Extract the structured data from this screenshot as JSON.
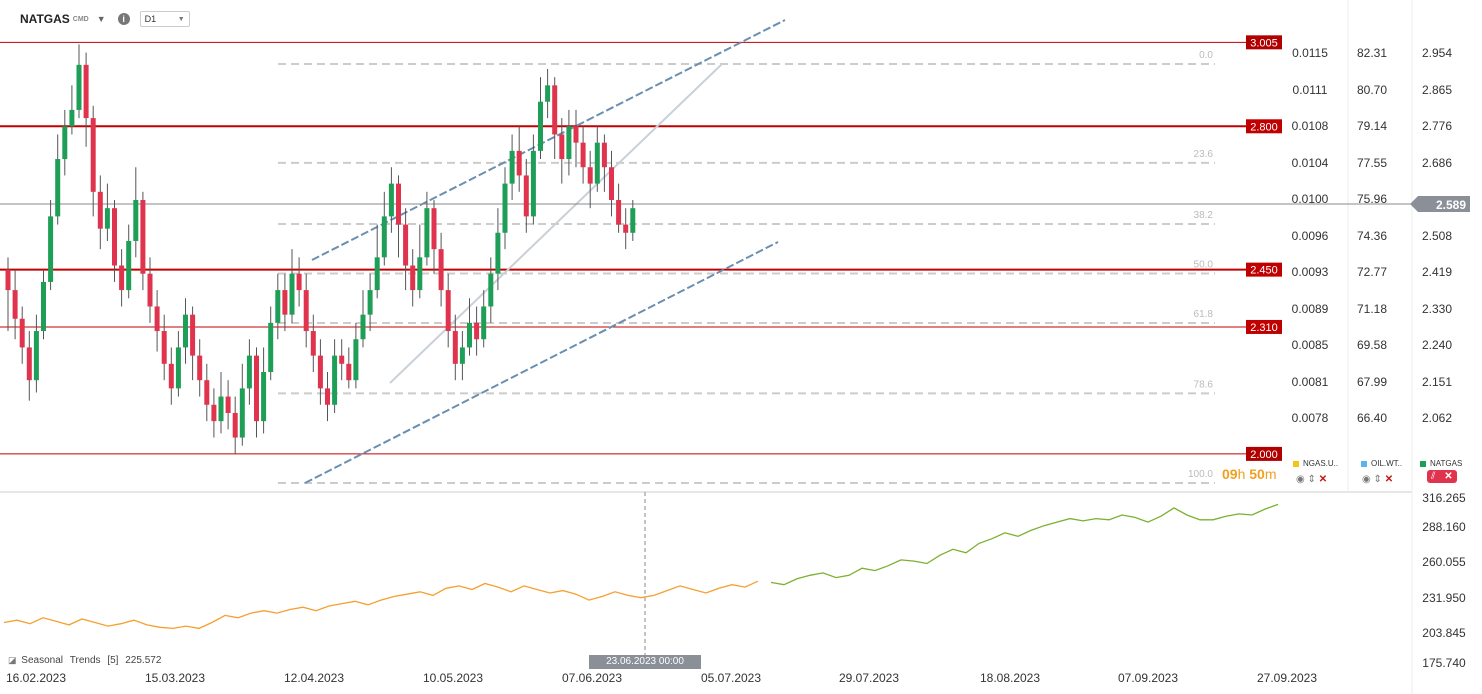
{
  "toolbar": {
    "symbol": "NATGAS",
    "symbol_suffix": "CMD",
    "timeframe": "D1",
    "info_icon": "i"
  },
  "price_levels": [
    {
      "label": "3.005",
      "color": "#b00000"
    },
    {
      "label": "2.800",
      "color": "#c00000"
    },
    {
      "label": "2.450",
      "color": "#c00000"
    },
    {
      "label": "2.310",
      "color": "#c00000"
    },
    {
      "label": "2.000",
      "color": "#b00000"
    }
  ],
  "current_price": "2.589",
  "fib_labels": [
    "0.0",
    "23.6",
    "38.2",
    "50.0",
    "61.8",
    "78.6",
    "100.0"
  ],
  "axis_ngas": [
    "0.0115",
    "0.0111",
    "0.0108",
    "0.0104",
    "0.0100",
    "0.0096",
    "0.0093",
    "0.0089",
    "0.0085",
    "0.0081",
    "0.0078"
  ],
  "axis_oil": [
    "82.31",
    "80.70",
    "79.14",
    "77.55",
    "75.96",
    "74.36",
    "72.77",
    "71.18",
    "69.58",
    "67.99",
    "66.40"
  ],
  "axis_natgas": [
    "2.954",
    "2.865",
    "2.776",
    "2.686",
    "2.597",
    "2.508",
    "2.419",
    "2.330",
    "2.240",
    "2.151",
    "2.062"
  ],
  "lower_axis": [
    "316.265",
    "288.160",
    "260.055",
    "231.950",
    "203.845",
    "175.740"
  ],
  "dates": [
    "16.02.2023",
    "15.03.2023",
    "12.04.2023",
    "10.05.2023",
    "07.06.2023",
    "05.07.2023",
    "29.07.2023",
    "18.08.2023",
    "07.09.2023",
    "27.09.2023"
  ],
  "legend": [
    {
      "name": "NGAS.U..",
      "color": "#f5c518"
    },
    {
      "name": "OIL.WT..",
      "color": "#5ab4f0"
    },
    {
      "name": "NATGAS",
      "color": "#1e9e57"
    }
  ],
  "timer": {
    "hours": "09",
    "h": "h",
    "minutes": "50",
    "m": "m"
  },
  "seasonal": {
    "label": "Seasonal",
    "name": "Trends",
    "period": "[5]",
    "value": "225.572"
  },
  "crosshair_date": "23.06.2023 00:00",
  "colors": {
    "up": "#1e9e57",
    "down": "#e0334d",
    "level": "#c00000",
    "past_line": "#f5a030",
    "future_line": "#7cb030"
  },
  "chart_data": {
    "type": "candlestick",
    "symbol": "NATGAS",
    "timeframe": "D1",
    "ylim": [
      1.99,
      3.04
    ],
    "resistance_support": [
      3.005,
      2.8,
      2.45,
      2.31,
      2.0
    ],
    "last_price": 2.589,
    "candles": [
      [
        2.45,
        2.4,
        2.48,
        2.3
      ],
      [
        2.4,
        2.33,
        2.45,
        2.28
      ],
      [
        2.33,
        2.26,
        2.36,
        2.22
      ],
      [
        2.26,
        2.18,
        2.3,
        2.13
      ],
      [
        2.18,
        2.3,
        2.34,
        2.15
      ],
      [
        2.3,
        2.42,
        2.45,
        2.28
      ],
      [
        2.42,
        2.58,
        2.62,
        2.4
      ],
      [
        2.58,
        2.72,
        2.78,
        2.56
      ],
      [
        2.72,
        2.8,
        2.84,
        2.68
      ],
      [
        2.8,
        2.84,
        2.9,
        2.78
      ],
      [
        2.84,
        2.95,
        3.0,
        2.82
      ],
      [
        2.95,
        2.82,
        2.98,
        2.75
      ],
      [
        2.82,
        2.64,
        2.85,
        2.58
      ],
      [
        2.64,
        2.55,
        2.68,
        2.5
      ],
      [
        2.55,
        2.6,
        2.66,
        2.52
      ],
      [
        2.6,
        2.46,
        2.62,
        2.42
      ],
      [
        2.46,
        2.4,
        2.5,
        2.36
      ],
      [
        2.4,
        2.52,
        2.56,
        2.38
      ],
      [
        2.52,
        2.62,
        2.7,
        2.48
      ],
      [
        2.62,
        2.44,
        2.64,
        2.4
      ],
      [
        2.44,
        2.36,
        2.48,
        2.32
      ],
      [
        2.36,
        2.3,
        2.4,
        2.25
      ],
      [
        2.3,
        2.22,
        2.34,
        2.18
      ],
      [
        2.22,
        2.16,
        2.26,
        2.12
      ],
      [
        2.16,
        2.26,
        2.3,
        2.14
      ],
      [
        2.26,
        2.34,
        2.38,
        2.22
      ],
      [
        2.34,
        2.24,
        2.36,
        2.18
      ],
      [
        2.24,
        2.18,
        2.28,
        2.14
      ],
      [
        2.18,
        2.12,
        2.22,
        2.08
      ],
      [
        2.12,
        2.08,
        2.16,
        2.04
      ],
      [
        2.08,
        2.14,
        2.2,
        2.05
      ],
      [
        2.14,
        2.1,
        2.18,
        2.06
      ],
      [
        2.1,
        2.04,
        2.14,
        2.0
      ],
      [
        2.04,
        2.16,
        2.22,
        2.02
      ],
      [
        2.16,
        2.24,
        2.28,
        2.12
      ],
      [
        2.24,
        2.08,
        2.26,
        2.04
      ],
      [
        2.08,
        2.2,
        2.26,
        2.05
      ],
      [
        2.2,
        2.32,
        2.36,
        2.18
      ],
      [
        2.32,
        2.4,
        2.44,
        2.28
      ],
      [
        2.4,
        2.34,
        2.44,
        2.3
      ],
      [
        2.34,
        2.44,
        2.5,
        2.32
      ],
      [
        2.44,
        2.4,
        2.48,
        2.36
      ],
      [
        2.4,
        2.3,
        2.44,
        2.26
      ],
      [
        2.3,
        2.24,
        2.34,
        2.2
      ],
      [
        2.24,
        2.16,
        2.28,
        2.12
      ],
      [
        2.16,
        2.12,
        2.2,
        2.08
      ],
      [
        2.12,
        2.24,
        2.28,
        2.1
      ],
      [
        2.24,
        2.22,
        2.28,
        2.18
      ],
      [
        2.22,
        2.18,
        2.26,
        2.16
      ],
      [
        2.18,
        2.28,
        2.32,
        2.16
      ],
      [
        2.28,
        2.34,
        2.4,
        2.26
      ],
      [
        2.34,
        2.4,
        2.44,
        2.3
      ],
      [
        2.4,
        2.48,
        2.56,
        2.38
      ],
      [
        2.48,
        2.58,
        2.64,
        2.46
      ],
      [
        2.58,
        2.66,
        2.7,
        2.54
      ],
      [
        2.66,
        2.56,
        2.68,
        2.48
      ],
      [
        2.56,
        2.46,
        2.6,
        2.4
      ],
      [
        2.46,
        2.4,
        2.5,
        2.36
      ],
      [
        2.4,
        2.48,
        2.56,
        2.38
      ],
      [
        2.48,
        2.6,
        2.64,
        2.46
      ],
      [
        2.6,
        2.5,
        2.62,
        2.44
      ],
      [
        2.5,
        2.4,
        2.54,
        2.36
      ],
      [
        2.4,
        2.3,
        2.44,
        2.26
      ],
      [
        2.3,
        2.22,
        2.34,
        2.18
      ],
      [
        2.22,
        2.26,
        2.3,
        2.18
      ],
      [
        2.26,
        2.32,
        2.38,
        2.24
      ],
      [
        2.32,
        2.28,
        2.36,
        2.24
      ],
      [
        2.28,
        2.36,
        2.4,
        2.26
      ],
      [
        2.36,
        2.44,
        2.48,
        2.32
      ],
      [
        2.44,
        2.54,
        2.6,
        2.4
      ],
      [
        2.54,
        2.66,
        2.7,
        2.5
      ],
      [
        2.66,
        2.74,
        2.78,
        2.62
      ],
      [
        2.74,
        2.68,
        2.8,
        2.64
      ],
      [
        2.68,
        2.58,
        2.72,
        2.54
      ],
      [
        2.58,
        2.74,
        2.78,
        2.56
      ],
      [
        2.74,
        2.86,
        2.92,
        2.72
      ],
      [
        2.86,
        2.9,
        2.94,
        2.82
      ],
      [
        2.9,
        2.78,
        2.92,
        2.72
      ],
      [
        2.78,
        2.72,
        2.82,
        2.66
      ],
      [
        2.72,
        2.8,
        2.84,
        2.68
      ],
      [
        2.8,
        2.76,
        2.84,
        2.7
      ],
      [
        2.76,
        2.7,
        2.8,
        2.66
      ],
      [
        2.7,
        2.66,
        2.74,
        2.6
      ],
      [
        2.66,
        2.76,
        2.8,
        2.64
      ],
      [
        2.76,
        2.7,
        2.78,
        2.64
      ],
      [
        2.7,
        2.62,
        2.74,
        2.58
      ],
      [
        2.62,
        2.56,
        2.66,
        2.54
      ],
      [
        2.56,
        2.54,
        2.6,
        2.5
      ],
      [
        2.54,
        2.6,
        2.62,
        2.52
      ]
    ],
    "seasonal_series": [
      210,
      212,
      209,
      214,
      211,
      208,
      213,
      210,
      207,
      209,
      212,
      208,
      206,
      205,
      207,
      205,
      210,
      216,
      214,
      218,
      220,
      218,
      221,
      223,
      220,
      224,
      226,
      228,
      225,
      229,
      232,
      234,
      236,
      233,
      239,
      241,
      238,
      243,
      240,
      236,
      241,
      238,
      235,
      237,
      234,
      229,
      232,
      236,
      233,
      231,
      233,
      237,
      241,
      238,
      235,
      239,
      242,
      240,
      245,
      244,
      242,
      247,
      250,
      252,
      248,
      250,
      256,
      254,
      258,
      263,
      262,
      260,
      267,
      272,
      269,
      277,
      281,
      286,
      283,
      288,
      292,
      295,
      298,
      296,
      298,
      297,
      301,
      299,
      295,
      300,
      307,
      301,
      297,
      297,
      300,
      302,
      301,
      306,
      310
    ]
  }
}
